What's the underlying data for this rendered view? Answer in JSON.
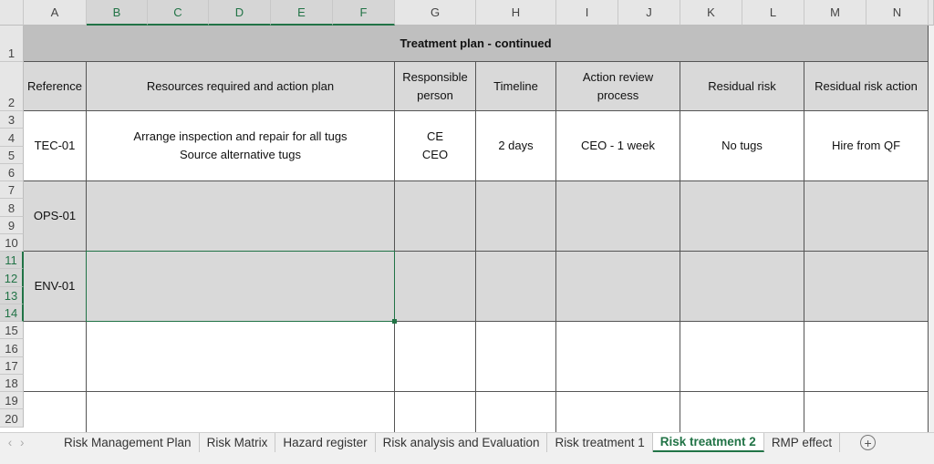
{
  "columns": [
    "A",
    "B",
    "C",
    "D",
    "E",
    "F",
    "G",
    "H",
    "I",
    "J",
    "K",
    "L",
    "M",
    "N"
  ],
  "selected_columns": [
    "B",
    "C",
    "D",
    "E",
    "F"
  ],
  "selected_rows": [
    11,
    12,
    13,
    14
  ],
  "rows": [
    1,
    2,
    3,
    4,
    5,
    6,
    7,
    8,
    9,
    10,
    11,
    12,
    13,
    14,
    15,
    16,
    17,
    18,
    19,
    20
  ],
  "title": "Treatment plan - continued",
  "headers": [
    "Reference",
    "Resources required and action plan",
    "Responsible\nperson",
    "Timeline",
    "Action review\nprocess",
    "Residual risk",
    "Residual risk action"
  ],
  "records": [
    {
      "cells": [
        "TEC-01",
        "Arrange inspection and repair for all tugs\nSource alternative tugs",
        "CE\nCEO",
        "2 days",
        "CEO - 1 week",
        "No tugs",
        "Hire from QF"
      ],
      "fill": "#ffffff"
    },
    {
      "cells": [
        "OPS-01",
        "",
        "",
        "",
        "",
        "",
        ""
      ],
      "fill": "#d9d9d9"
    },
    {
      "cells": [
        "ENV-01",
        "",
        "",
        "",
        "",
        "",
        ""
      ],
      "fill": "#d9d9d9"
    },
    {
      "cells": [
        "",
        "",
        "",
        "",
        "",
        "",
        ""
      ],
      "fill": "#ffffff"
    },
    {
      "cells": [
        "",
        "",
        "",
        "",
        "",
        "",
        ""
      ],
      "fill": "#ffffff"
    }
  ],
  "sheet_tabs": [
    "Risk Management Plan",
    "Risk Matrix",
    "Hazard register",
    "Risk analysis and Evaluation",
    "Risk treatment 1",
    "Risk treatment 2",
    "RMP effect"
  ],
  "active_tab": "Risk treatment 2",
  "colors": {
    "accent": "#217346",
    "title_fill": "#bfbfbf",
    "header_fill": "#d9d9d9"
  }
}
